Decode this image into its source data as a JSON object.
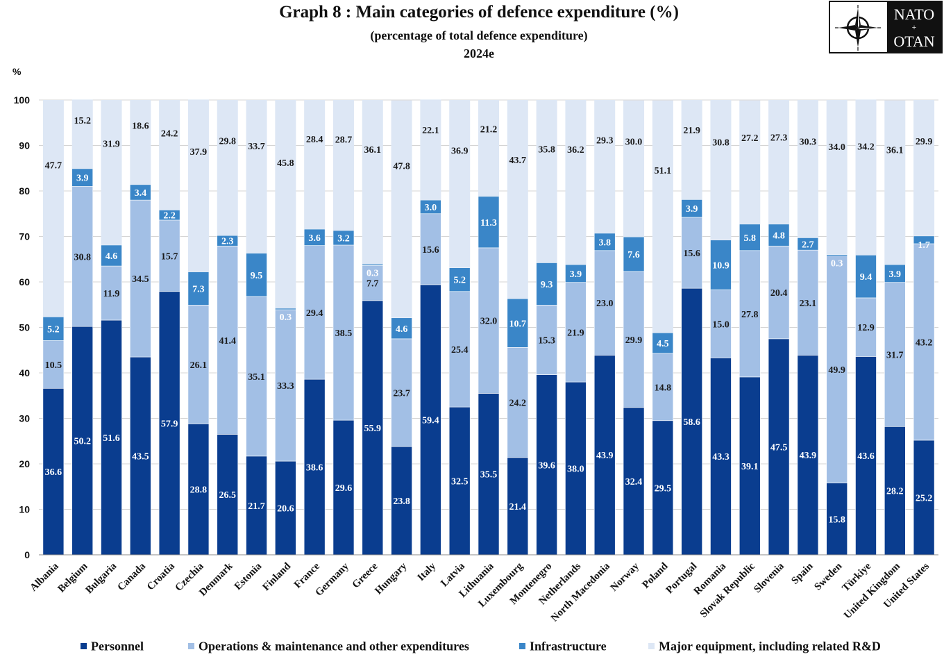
{
  "colors": {
    "personnel": "#0a3d8f",
    "operations": "#a2bfe5",
    "infrastructure": "#3a86c8",
    "equipment": "#dde7f5",
    "grid": "#d4d4d4",
    "label_dark": "#1a1a1a",
    "label_light": "#ffffff"
  },
  "logo": {
    "line1": "NATO",
    "line2": "OTAN",
    "icon": "nato-compass-rose-icon"
  },
  "chart_data": {
    "type": "bar",
    "stacked": true,
    "title": "Graph 8 : Main categories of defence expenditure (%)",
    "subtitle": "(percentage of total defence expenditure)",
    "year_label": "2024e",
    "ylabel": "%",
    "ylim": [
      0,
      100
    ],
    "yticks": [
      0,
      10,
      20,
      30,
      40,
      50,
      60,
      70,
      80,
      90,
      100
    ],
    "grid": true,
    "legend_position": "bottom",
    "categories": [
      "Albania",
      "Belgium",
      "Bulgaria",
      "Canada",
      "Croatia",
      "Czechia",
      "Denmark",
      "Estonia",
      "Finland",
      "France",
      "Germany",
      "Greece",
      "Hungary",
      "Italy",
      "Latvia",
      "Lithuania",
      "Luxembourg",
      "Montenegro",
      "Netherlands",
      "North Macedonia",
      "Norway",
      "Poland",
      "Portugal",
      "Romania",
      "Slovak Republic",
      "Slovenia",
      "Spain",
      "Sweden",
      "Türkiye",
      "United Kingdom",
      "United States"
    ],
    "series": [
      {
        "name": "Personnel",
        "color_key": "personnel",
        "values": [
          36.6,
          50.2,
          51.6,
          43.5,
          57.9,
          28.8,
          26.5,
          21.7,
          20.6,
          38.6,
          29.6,
          55.9,
          23.8,
          59.4,
          32.5,
          35.5,
          21.4,
          39.6,
          38.0,
          43.9,
          32.4,
          29.5,
          58.6,
          43.3,
          39.1,
          47.5,
          43.9,
          15.8,
          43.6,
          28.2,
          25.2
        ]
      },
      {
        "name": "Operations & maintenance and other expenditures",
        "color_key": "operations",
        "values": [
          10.5,
          30.8,
          11.9,
          34.5,
          15.7,
          26.1,
          41.4,
          35.1,
          33.3,
          29.4,
          38.5,
          7.7,
          23.7,
          15.6,
          25.4,
          32.0,
          24.2,
          15.3,
          21.9,
          23.0,
          29.9,
          14.8,
          15.6,
          15.0,
          27.8,
          20.4,
          23.1,
          49.9,
          12.9,
          31.7,
          43.2
        ]
      },
      {
        "name": "Infrastructure",
        "color_key": "infrastructure",
        "values": [
          5.2,
          3.9,
          4.6,
          3.4,
          2.2,
          7.3,
          2.3,
          9.5,
          0.3,
          3.6,
          3.2,
          0.3,
          4.6,
          3.0,
          5.2,
          11.3,
          10.7,
          9.3,
          3.9,
          3.8,
          7.6,
          4.5,
          3.9,
          10.9,
          5.8,
          4.8,
          2.7,
          0.3,
          9.4,
          3.9,
          1.7
        ]
      },
      {
        "name": "Major equipment, including related R&D",
        "color_key": "equipment",
        "values": [
          47.7,
          15.2,
          31.9,
          18.6,
          24.2,
          37.9,
          29.8,
          33.7,
          45.8,
          28.4,
          28.7,
          36.1,
          47.8,
          22.1,
          36.9,
          21.2,
          43.7,
          35.8,
          36.2,
          29.3,
          30.0,
          51.1,
          21.9,
          30.8,
          27.2,
          27.3,
          30.3,
          34.0,
          34.2,
          36.1,
          29.9
        ]
      }
    ]
  }
}
